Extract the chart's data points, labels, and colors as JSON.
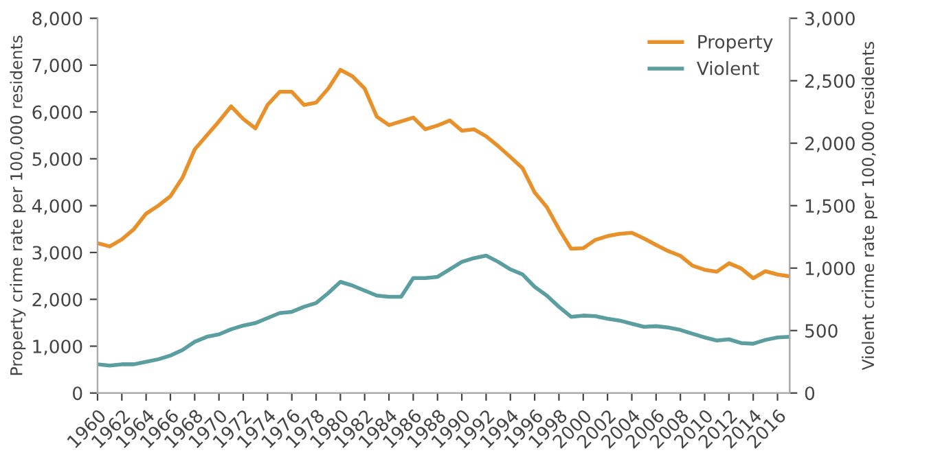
{
  "chart_data": {
    "type": "line",
    "ylabel": "Property crime rate per 100,000 residents",
    "y2label": "Violent crime rate per 100,000 residents",
    "x": [
      1960,
      1961,
      1962,
      1963,
      1964,
      1965,
      1966,
      1967,
      1968,
      1969,
      1970,
      1971,
      1972,
      1973,
      1974,
      1975,
      1976,
      1977,
      1978,
      1979,
      1980,
      1981,
      1982,
      1983,
      1984,
      1985,
      1986,
      1987,
      1988,
      1989,
      1990,
      1991,
      1992,
      1993,
      1994,
      1995,
      1996,
      1997,
      1998,
      1999,
      2000,
      2001,
      2002,
      2003,
      2004,
      2005,
      2006,
      2007,
      2008,
      2009,
      2010,
      2011,
      2012,
      2013,
      2014,
      2015,
      2016,
      2017
    ],
    "series": [
      {
        "name": "Property",
        "color": "#e8912b",
        "values": [
          3200,
          3130,
          3280,
          3500,
          3830,
          4000,
          4200,
          4600,
          5200,
          5500,
          5800,
          6120,
          5850,
          5650,
          6150,
          6430,
          6430,
          6150,
          6200,
          6500,
          6900,
          6760,
          6500,
          5900,
          5720,
          5800,
          5880,
          5630,
          5710,
          5820,
          5600,
          5630,
          5480,
          5270,
          5040,
          4800,
          4280,
          3970,
          3500,
          3080,
          3090,
          3270,
          3350,
          3400,
          3420,
          3300,
          3160,
          3030,
          2930,
          2720,
          2630,
          2590,
          2770,
          2660,
          2450,
          2600,
          2530,
          2490
        ]
      },
      {
        "name": "Violent",
        "color": "#5b9ea0",
        "axis": "y2",
        "values": [
          230,
          220,
          230,
          230,
          250,
          270,
          300,
          345,
          410,
          450,
          470,
          510,
          540,
          560,
          600,
          640,
          650,
          690,
          720,
          800,
          890,
          860,
          820,
          780,
          770,
          770,
          920,
          920,
          930,
          990,
          1050,
          1080,
          1100,
          1050,
          990,
          950,
          850,
          780,
          690,
          610,
          620,
          615,
          595,
          580,
          555,
          530,
          535,
          525,
          505,
          475,
          445,
          420,
          430,
          400,
          395,
          425,
          445,
          450
        ]
      }
    ],
    "xlim": [
      1960,
      2017
    ],
    "xticks": [
      1960,
      1962,
      1964,
      1966,
      1968,
      1970,
      1972,
      1974,
      1976,
      1978,
      1980,
      1982,
      1984,
      1986,
      1988,
      1990,
      1992,
      1994,
      1996,
      1998,
      2000,
      2002,
      2004,
      2006,
      2008,
      2010,
      2012,
      2014,
      2016
    ],
    "ylim": [
      0,
      8000
    ],
    "yticks": [
      {
        "value": 0,
        "label": "0"
      },
      {
        "value": 1000,
        "label": "1,000"
      },
      {
        "value": 2000,
        "label": "2,000"
      },
      {
        "value": 3000,
        "label": "3,000"
      },
      {
        "value": 4000,
        "label": "4,000"
      },
      {
        "value": 5000,
        "label": "5,000"
      },
      {
        "value": 6000,
        "label": "6,000"
      },
      {
        "value": 7000,
        "label": "7,000"
      },
      {
        "value": 8000,
        "label": "8,000"
      }
    ],
    "y2lim": [
      0,
      3000
    ],
    "y2ticks": [
      {
        "value": 0,
        "label": "0"
      },
      {
        "value": 500,
        "label": "500"
      },
      {
        "value": 1000,
        "label": "1,000"
      },
      {
        "value": 1500,
        "label": "1,500"
      },
      {
        "value": 2000,
        "label": "2,000"
      },
      {
        "value": 2500,
        "label": "2,500"
      },
      {
        "value": 3000,
        "label": "3,000"
      }
    ],
    "grid": false,
    "legend": "top right",
    "line_style": "solid",
    "marker": "none"
  }
}
